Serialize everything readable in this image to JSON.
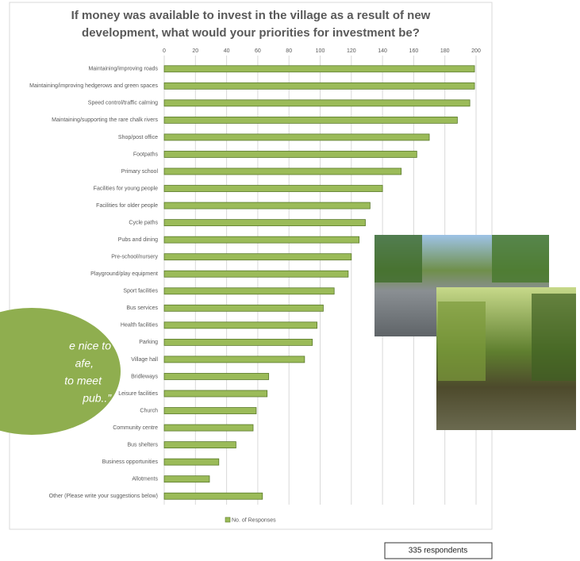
{
  "chart_data": {
    "type": "bar",
    "orientation": "horizontal",
    "title": "If money was available to invest in the village as a result of new development, what would your priorities for investment be?",
    "categories": [
      "Maintaining/improving roads",
      "Maintaining/improving hedgerows and green spaces",
      "Speed control/traffic calming",
      "Maintaining/supporting the rare chalk rivers",
      "Shop/post office",
      "Footpaths",
      "Primary school",
      "Facilities for young people",
      "Facilities for older people",
      "Cycle paths",
      "Pubs and dining",
      "Pre-school/nursery",
      "Playground/play equipment",
      "Sport facilities",
      "Bus services",
      "Health facilities",
      "Parking",
      "Village hall",
      "Bridleways",
      "Leisure facilities",
      "Church",
      "Community centre",
      "Bus shelters",
      "Business opportunities",
      "Allotments",
      "Other (Please write your suggestions below)"
    ],
    "series": [
      {
        "name": "No. of Responses",
        "color": "#9bbb59",
        "values": [
          199,
          199,
          196,
          188,
          170,
          162,
          152,
          140,
          132,
          129,
          125,
          120,
          118,
          109,
          102,
          98,
          95,
          90,
          67,
          66,
          59,
          57,
          46,
          35,
          29,
          63
        ]
      }
    ],
    "xlim": [
      0,
      200
    ],
    "xticks": [
      0,
      20,
      40,
      60,
      80,
      100,
      120,
      140,
      160,
      180,
      200
    ],
    "grid": true,
    "legend": "bottom"
  },
  "quote": [
    "e nice to",
    "afe,",
    "to meet",
    "pub..”"
  ],
  "footnote": "335 respondents"
}
